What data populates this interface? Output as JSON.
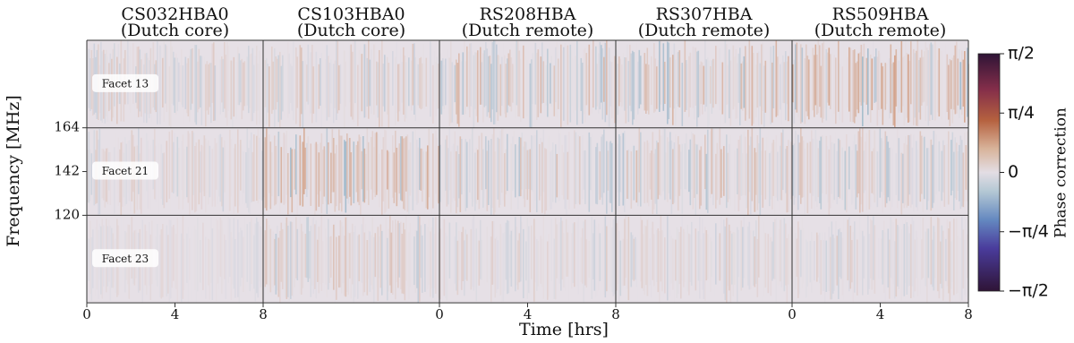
{
  "chart_data": {
    "type": "heatmap-grid",
    "columns": [
      {
        "station": "CS032HBA0",
        "group": "(Dutch core)",
        "xlim": [
          0,
          8
        ],
        "xticks": [
          0,
          4,
          8
        ]
      },
      {
        "station": "CS103HBA0",
        "group": "(Dutch core)",
        "xlim": [
          0,
          8
        ],
        "xticks": []
      },
      {
        "station": "RS208HBA",
        "group": "(Dutch remote)",
        "xlim": [
          0,
          8
        ],
        "xticks": [
          0,
          4,
          8
        ]
      },
      {
        "station": "RS307HBA",
        "group": "(Dutch remote)",
        "xlim": [
          0,
          8
        ],
        "xticks": []
      },
      {
        "station": "RS509HBA",
        "group": "(Dutch remote)",
        "xlim": [
          0,
          8
        ],
        "xticks": [
          0,
          4,
          8
        ]
      }
    ],
    "rows": [
      {
        "label": "Facet 13"
      },
      {
        "label": "Facet 21",
        "ylim": [
          120,
          164
        ],
        "yticks": [
          120,
          142,
          164
        ]
      },
      {
        "label": "Facet 23"
      }
    ],
    "xlabel": "Time [hrs]",
    "ylabel": "Frequency [MHz]",
    "colorbar": {
      "label": "Phase correction",
      "ylim": [
        -1.5708,
        1.5708
      ],
      "ticks": [
        {
          "value": -1.5708,
          "label": "−π/2"
        },
        {
          "value": -0.7854,
          "label": "−π/4"
        },
        {
          "value": 0,
          "label": "0"
        },
        {
          "value": 0.7854,
          "label": "π/4"
        },
        {
          "value": 1.5708,
          "label": "π/2"
        }
      ]
    }
  }
}
